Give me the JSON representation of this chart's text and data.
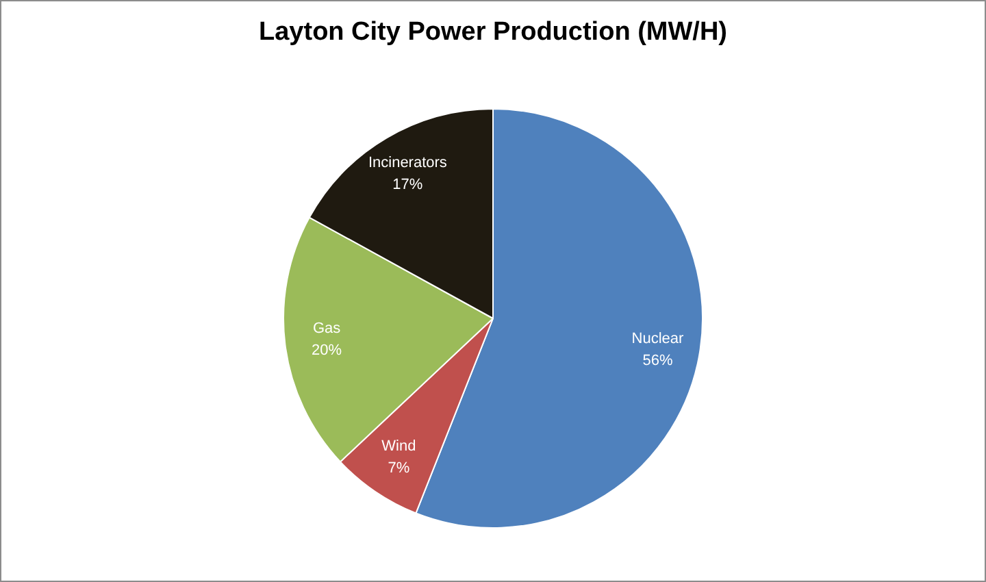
{
  "chart_data": {
    "type": "pie",
    "title": "Layton City Power Production (MW/H)",
    "categories": [
      "Nuclear",
      "Wind",
      "Gas",
      "Incinerators"
    ],
    "values": [
      56,
      7,
      20,
      17
    ],
    "colors": [
      "#4f81bd",
      "#c0504d",
      "#9bbb59",
      "#1f1a10"
    ],
    "value_labels": [
      "56%",
      "7%",
      "20%",
      "17%"
    ]
  }
}
